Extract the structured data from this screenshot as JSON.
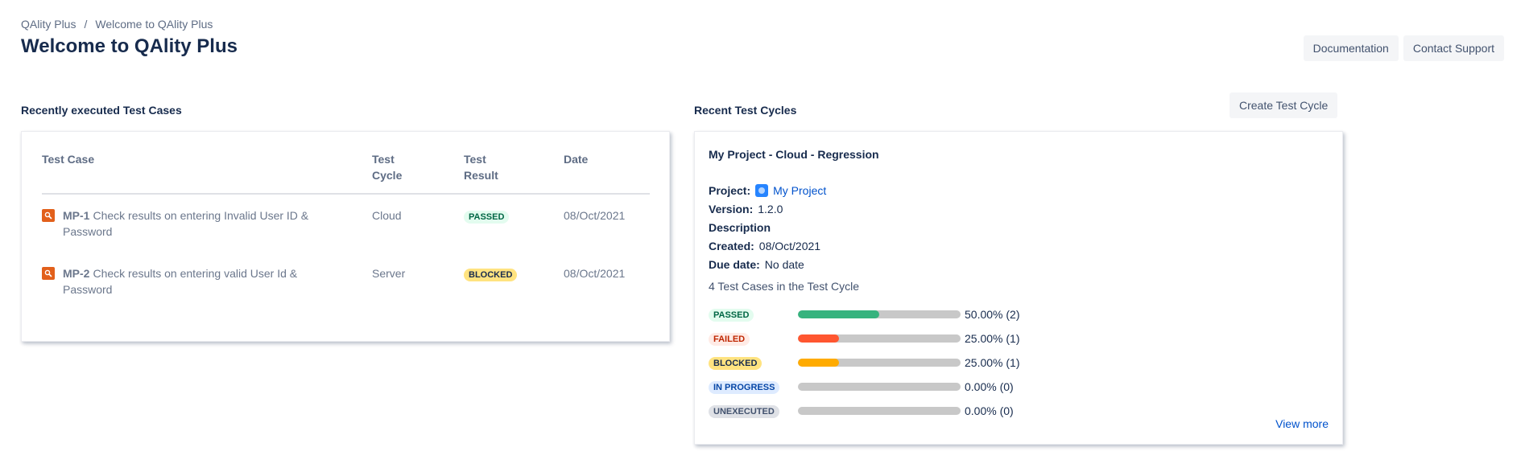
{
  "breadcrumb": {
    "root": "QAlity Plus",
    "separator": "/",
    "current": "Welcome to QAlity Plus"
  },
  "page_title": "Welcome to QAlity Plus",
  "actions": {
    "documentation": "Documentation",
    "contact_support": "Contact Support",
    "create_test_cycle": "Create Test Cycle"
  },
  "recent_cases": {
    "title": "Recently executed Test Cases",
    "headers": {
      "case": "Test Case",
      "cycle": "Test Cycle",
      "result": "Test Result",
      "date": "Date"
    },
    "rows": [
      {
        "key": "MP-1",
        "summary": "Check results on entering Invalid User ID & Password",
        "cycle": "Cloud",
        "result": "PASSED",
        "date": "08/Oct/2021"
      },
      {
        "key": "MP-2",
        "summary": "Check results on entering valid User Id & Password",
        "cycle": "Server",
        "result": "BLOCKED",
        "date": "08/Oct/2021"
      }
    ]
  },
  "recent_cycles": {
    "title": "Recent Test Cycles",
    "cycle": {
      "name": "My Project - Cloud - Regression",
      "project_label": "Project:",
      "project_value": "My Project",
      "version_label": "Version:",
      "version_value": "1.2.0",
      "description_label": "Description",
      "created_label": "Created:",
      "created_value": "08/Oct/2021",
      "due_label": "Due date:",
      "due_value": "No date",
      "cases_count": "4 Test Cases in the Test Cycle",
      "stats": [
        {
          "label": "PASSED",
          "fraction": 0.5,
          "text": "50.00% (2)",
          "color": "#36b37e"
        },
        {
          "label": "FAILED",
          "fraction": 0.25,
          "text": "25.00% (1)",
          "color": "#ff5630"
        },
        {
          "label": "BLOCKED",
          "fraction": 0.25,
          "text": "25.00% (1)",
          "color": "#ffab00"
        },
        {
          "label": "IN PROGRESS",
          "fraction": 0.0,
          "text": "0.00% (0)",
          "color": "#0065ff"
        },
        {
          "label": "UNEXECUTED",
          "fraction": 0.0,
          "text": "0.00% (0)",
          "color": "#6b778c"
        }
      ],
      "view_more": "View more"
    }
  }
}
